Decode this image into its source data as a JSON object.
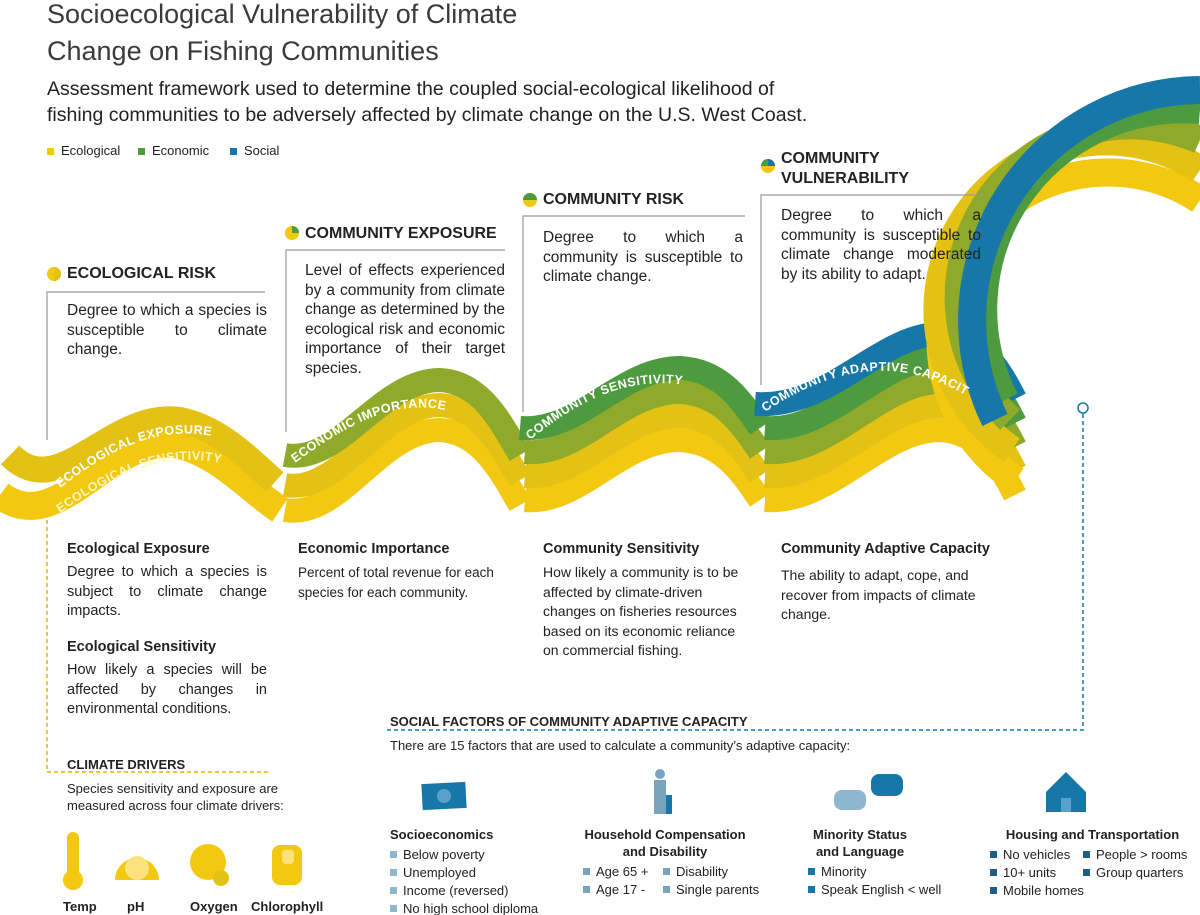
{
  "header": {
    "title": "Socioecological Vulnerability of Climate Change on Fishing Communities",
    "subtitle": "Assessment framework used to determine the coupled social-ecological likelihood of fishing communities to be adversely affected by climate change on the U.S. West Coast."
  },
  "legend": [
    {
      "label": "Ecological",
      "color": "#f2c811"
    },
    {
      "label": "Economic",
      "color": "#4e9a3e"
    },
    {
      "label": "Social",
      "color": "#1777a8"
    }
  ],
  "stages": [
    {
      "title": "ECOLOGICAL RISK",
      "description": "Degree to which a species is susceptible to climate change."
    },
    {
      "title": "COMMUNITY EXPOSURE",
      "description": "Level of effects experienced by a community from climate change as determined by the ecological risk and economic importance of their target species."
    },
    {
      "title": "COMMUNITY RISK",
      "description": "Degree to which a community is susceptible to climate change."
    },
    {
      "title": "COMMUNITY VULNERABILITY",
      "description": "Degree to which a community is susceptible to climate change moderated by its ability to adapt."
    }
  ],
  "wave_labels": [
    "ECOLOGICAL EXPOSURE",
    "ECOLOGICAL SENSITIVITY",
    "ECONOMIC IMPORTANCE",
    "COMMUNITY SENSITIVITY",
    "COMMUNITY ADAPTIVE CAPACITY"
  ],
  "components": [
    {
      "title": "Ecological Exposure",
      "description": "Degree to which a species is subject to climate change impacts."
    },
    {
      "title": "Ecological Sensitivity",
      "description": "How likely a species will be affected by changes in environmental conditions."
    },
    {
      "title": "Economic Importance",
      "description": "Percent of total revenue for each species for each community."
    },
    {
      "title": "Community Sensitivity",
      "description": "How likely a community is to be affected by climate-driven changes on fisheries resources based on its economic reliance on commercial fishing."
    },
    {
      "title": "Community Adaptive Capacity",
      "description": "The ability to adapt, cope, and recover from impacts of climate change."
    }
  ],
  "climate_drivers": {
    "title": "CLIMATE DRIVERS",
    "description": "Species sensitivity and exposure are measured across four climate drivers:",
    "items": [
      "Temp",
      "pH",
      "Oxygen",
      "Chlorophyll"
    ]
  },
  "social_factors": {
    "title": "SOCIAL  FACTORS OF COMMUNITY ADAPTIVE CAPACITY",
    "description": "There are 15 factors that are used to calculate a community’s adaptive capacity:",
    "groups": [
      {
        "title": "Socioeconomics",
        "items": [
          "Below poverty",
          "Unemployed",
          "Income (reversed)",
          "No high school diploma"
        ]
      },
      {
        "title": "Household Compensation and Disability",
        "items": [
          "Age 65 +",
          "Disability",
          "Age 17 -",
          "Single parents"
        ]
      },
      {
        "title": "Minority Status and Language",
        "items": [
          "Minority",
          "Speak English < well"
        ]
      },
      {
        "title": "Housing and Transportation",
        "items": [
          "No vehicles",
          "People > rooms",
          "10+ units",
          "Group quarters",
          "Mobile homes"
        ]
      }
    ]
  }
}
